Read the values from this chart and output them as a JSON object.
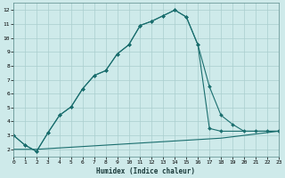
{
  "xlabel": "Humidex (Indice chaleur)",
  "bg_color": "#ceeaea",
  "grid_color": "#aacece",
  "line_color": "#1a6e6e",
  "xlim": [
    0,
    23
  ],
  "ylim": [
    1.5,
    12.5
  ],
  "line1_x": [
    0,
    1,
    2,
    3,
    4,
    5,
    6,
    7,
    8,
    9,
    10,
    11,
    12,
    13,
    14,
    15,
    16,
    17,
    18,
    23
  ],
  "line1_y": [
    3.0,
    2.3,
    1.85,
    3.2,
    4.45,
    5.05,
    6.35,
    7.3,
    7.65,
    8.85,
    9.5,
    10.9,
    11.2,
    11.6,
    12.0,
    11.5,
    9.5,
    3.5,
    3.3,
    3.3
  ],
  "line2_x": [
    0,
    1,
    2,
    3,
    4,
    5,
    6,
    7,
    8,
    9,
    10,
    11,
    12,
    13,
    14,
    15,
    16,
    17,
    18,
    19,
    20,
    21,
    22,
    23
  ],
  "line2_y": [
    3.0,
    2.3,
    1.85,
    3.2,
    4.45,
    5.05,
    6.35,
    7.3,
    7.65,
    8.85,
    9.5,
    10.9,
    11.2,
    11.6,
    12.0,
    11.5,
    9.5,
    6.5,
    4.45,
    3.8,
    3.3,
    3.3,
    3.3,
    3.3
  ],
  "line3_x": [
    0,
    1,
    2,
    3,
    4,
    5,
    6,
    7,
    8,
    9,
    10,
    11,
    12,
    13,
    14,
    15,
    16,
    17,
    18,
    19,
    20,
    21,
    22,
    23
  ],
  "line3_y": [
    2.0,
    2.0,
    2.0,
    2.05,
    2.1,
    2.15,
    2.2,
    2.25,
    2.3,
    2.35,
    2.4,
    2.45,
    2.5,
    2.55,
    2.6,
    2.65,
    2.7,
    2.75,
    2.8,
    2.9,
    3.0,
    3.1,
    3.2,
    3.3
  ]
}
